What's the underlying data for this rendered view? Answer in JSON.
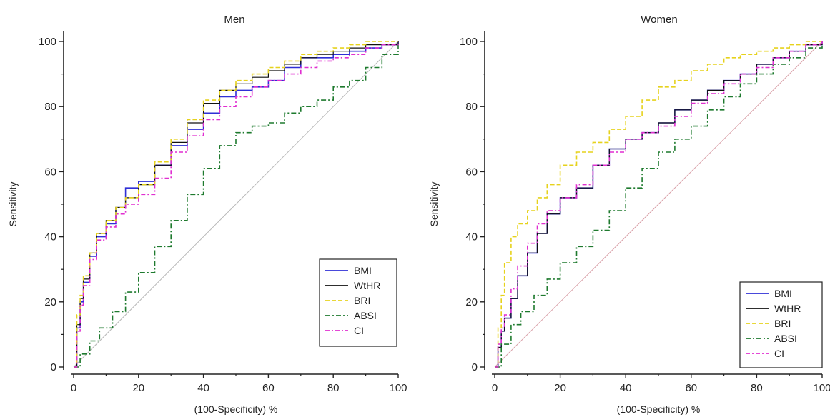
{
  "chart_data": [
    {
      "type": "line",
      "title": "Men",
      "xlabel": "(100-Specificity) %",
      "ylabel": "Sensitivity",
      "xlim": [
        0,
        100
      ],
      "ylim": [
        0,
        100
      ],
      "xticks": [
        "0",
        "20",
        "40",
        "60",
        "80",
        "100"
      ],
      "yticks": [
        "0",
        "20",
        "40",
        "60",
        "80",
        "100"
      ],
      "legend_position": "bottom-right",
      "reference_line": {
        "x": [
          0,
          100
        ],
        "y": [
          0,
          100
        ],
        "color": "#b8b8b8"
      },
      "series": [
        {
          "name": "BMI",
          "color": "#2f2fd6",
          "dash": "solid",
          "x": [
            0,
            1,
            2,
            3,
            5,
            7,
            10,
            13,
            16,
            20,
            25,
            30,
            35,
            40,
            45,
            50,
            55,
            60,
            65,
            70,
            75,
            80,
            85,
            90,
            95,
            100
          ],
          "y": [
            0,
            12,
            20,
            26,
            34,
            40,
            44,
            49,
            55,
            57,
            62,
            68,
            73,
            78,
            83,
            85,
            86,
            88,
            92,
            95,
            95,
            96,
            97,
            98,
            99,
            100
          ]
        },
        {
          "name": "WtHR",
          "color": "#111111",
          "dash": "solid",
          "x": [
            0,
            1,
            2,
            3,
            5,
            7,
            10,
            13,
            16,
            20,
            25,
            30,
            35,
            40,
            45,
            50,
            55,
            60,
            65,
            70,
            75,
            80,
            85,
            90,
            95,
            100
          ],
          "y": [
            0,
            13,
            21,
            27,
            35,
            41,
            45,
            49,
            52,
            56,
            62,
            69,
            75,
            81,
            85,
            87,
            89,
            91,
            93,
            95,
            96,
            97,
            98,
            99,
            99,
            100
          ]
        },
        {
          "name": "BRI",
          "color": "#e6d21c",
          "dash": "6,3",
          "x": [
            0,
            1,
            2,
            3,
            5,
            7,
            10,
            13,
            16,
            20,
            25,
            30,
            35,
            40,
            45,
            50,
            55,
            60,
            65,
            70,
            75,
            80,
            85,
            90,
            95,
            100
          ],
          "y": [
            0,
            16,
            22,
            28,
            35,
            41,
            45,
            49,
            52,
            56,
            63,
            70,
            76,
            82,
            85,
            88,
            90,
            92,
            94,
            96,
            97,
            98,
            99,
            100,
            100,
            100
          ]
        },
        {
          "name": "ABSI",
          "color": "#1e7a2e",
          "dash": "7,3,2,3",
          "x": [
            0,
            2,
            5,
            8,
            12,
            16,
            20,
            25,
            30,
            35,
            40,
            45,
            50,
            55,
            60,
            65,
            70,
            75,
            80,
            85,
            90,
            95,
            100
          ],
          "y": [
            0,
            4,
            8,
            12,
            17,
            23,
            29,
            37,
            45,
            53,
            61,
            68,
            72,
            74,
            75,
            78,
            80,
            82,
            86,
            88,
            92,
            96,
            100
          ]
        },
        {
          "name": "CI",
          "color": "#e02fd0",
          "dash": "6,3,2,3",
          "x": [
            0,
            1,
            2,
            3,
            5,
            7,
            10,
            13,
            16,
            20,
            25,
            30,
            35,
            40,
            45,
            50,
            55,
            60,
            65,
            70,
            75,
            80,
            85,
            90,
            95,
            100
          ],
          "y": [
            0,
            11,
            19,
            25,
            33,
            39,
            43,
            47,
            50,
            53,
            58,
            66,
            71,
            76,
            80,
            83,
            86,
            88,
            90,
            92,
            94,
            95,
            96,
            98,
            99,
            100
          ]
        }
      ]
    },
    {
      "type": "line",
      "title": "Women",
      "xlabel": "(100-Specificity) %",
      "ylabel": "Sensitivity",
      "xlim": [
        0,
        100
      ],
      "ylim": [
        0,
        100
      ],
      "xticks": [
        "0",
        "20",
        "40",
        "60",
        "80",
        "100"
      ],
      "yticks": [
        "0",
        "20",
        "40",
        "60",
        "80",
        "100"
      ],
      "legend_position": "bottom-right",
      "reference_line": {
        "x": [
          0,
          100
        ],
        "y": [
          0,
          100
        ],
        "color": "#d9a0a8"
      },
      "series": [
        {
          "name": "BMI",
          "color": "#2f2fd6",
          "dash": "solid",
          "x": [
            0,
            1,
            2,
            3,
            5,
            7,
            10,
            13,
            16,
            20,
            25,
            30,
            35,
            40,
            45,
            50,
            55,
            60,
            65,
            70,
            75,
            80,
            85,
            90,
            95,
            100
          ],
          "y": [
            0,
            6,
            11,
            15,
            21,
            28,
            35,
            41,
            47,
            52,
            55,
            62,
            67,
            70,
            72,
            75,
            79,
            82,
            85,
            88,
            90,
            93,
            95,
            97,
            99,
            100
          ]
        },
        {
          "name": "WtHR",
          "color": "#111111",
          "dash": "solid",
          "x": [
            0,
            1,
            2,
            3,
            5,
            7,
            10,
            13,
            16,
            20,
            25,
            30,
            35,
            40,
            45,
            50,
            55,
            60,
            65,
            70,
            75,
            80,
            85,
            90,
            95,
            100
          ],
          "y": [
            0,
            6,
            11,
            15,
            21,
            28,
            35,
            41,
            47,
            52,
            55,
            62,
            67,
            70,
            72,
            75,
            79,
            82,
            85,
            88,
            90,
            93,
            95,
            97,
            99,
            100
          ]
        },
        {
          "name": "BRI",
          "color": "#e6d21c",
          "dash": "6,3",
          "x": [
            0,
            1,
            2,
            3,
            5,
            7,
            10,
            13,
            16,
            20,
            25,
            30,
            35,
            40,
            45,
            50,
            55,
            60,
            65,
            70,
            75,
            80,
            85,
            90,
            95,
            100
          ],
          "y": [
            0,
            12,
            22,
            32,
            40,
            44,
            48,
            52,
            56,
            62,
            66,
            69,
            73,
            77,
            82,
            86,
            88,
            91,
            93,
            95,
            96,
            97,
            98,
            99,
            100,
            100
          ]
        },
        {
          "name": "ABSI",
          "color": "#1e7a2e",
          "dash": "7,3,2,3",
          "x": [
            0,
            2,
            5,
            8,
            12,
            16,
            20,
            25,
            30,
            35,
            40,
            45,
            50,
            55,
            60,
            65,
            70,
            75,
            80,
            85,
            90,
            95,
            100
          ],
          "y": [
            0,
            7,
            13,
            17,
            22,
            27,
            32,
            37,
            42,
            48,
            55,
            61,
            66,
            70,
            74,
            79,
            83,
            87,
            90,
            93,
            95,
            98,
            100
          ]
        },
        {
          "name": "CI",
          "color": "#e02fd0",
          "dash": "6,3,2,3",
          "x": [
            0,
            1,
            2,
            3,
            5,
            7,
            10,
            13,
            16,
            20,
            25,
            30,
            35,
            40,
            45,
            50,
            55,
            60,
            65,
            70,
            75,
            80,
            85,
            90,
            95,
            100
          ],
          "y": [
            0,
            7,
            12,
            16,
            24,
            31,
            38,
            44,
            48,
            52,
            56,
            62,
            66,
            70,
            72,
            74,
            77,
            81,
            84,
            87,
            90,
            92,
            95,
            97,
            99,
            100
          ]
        }
      ]
    }
  ]
}
